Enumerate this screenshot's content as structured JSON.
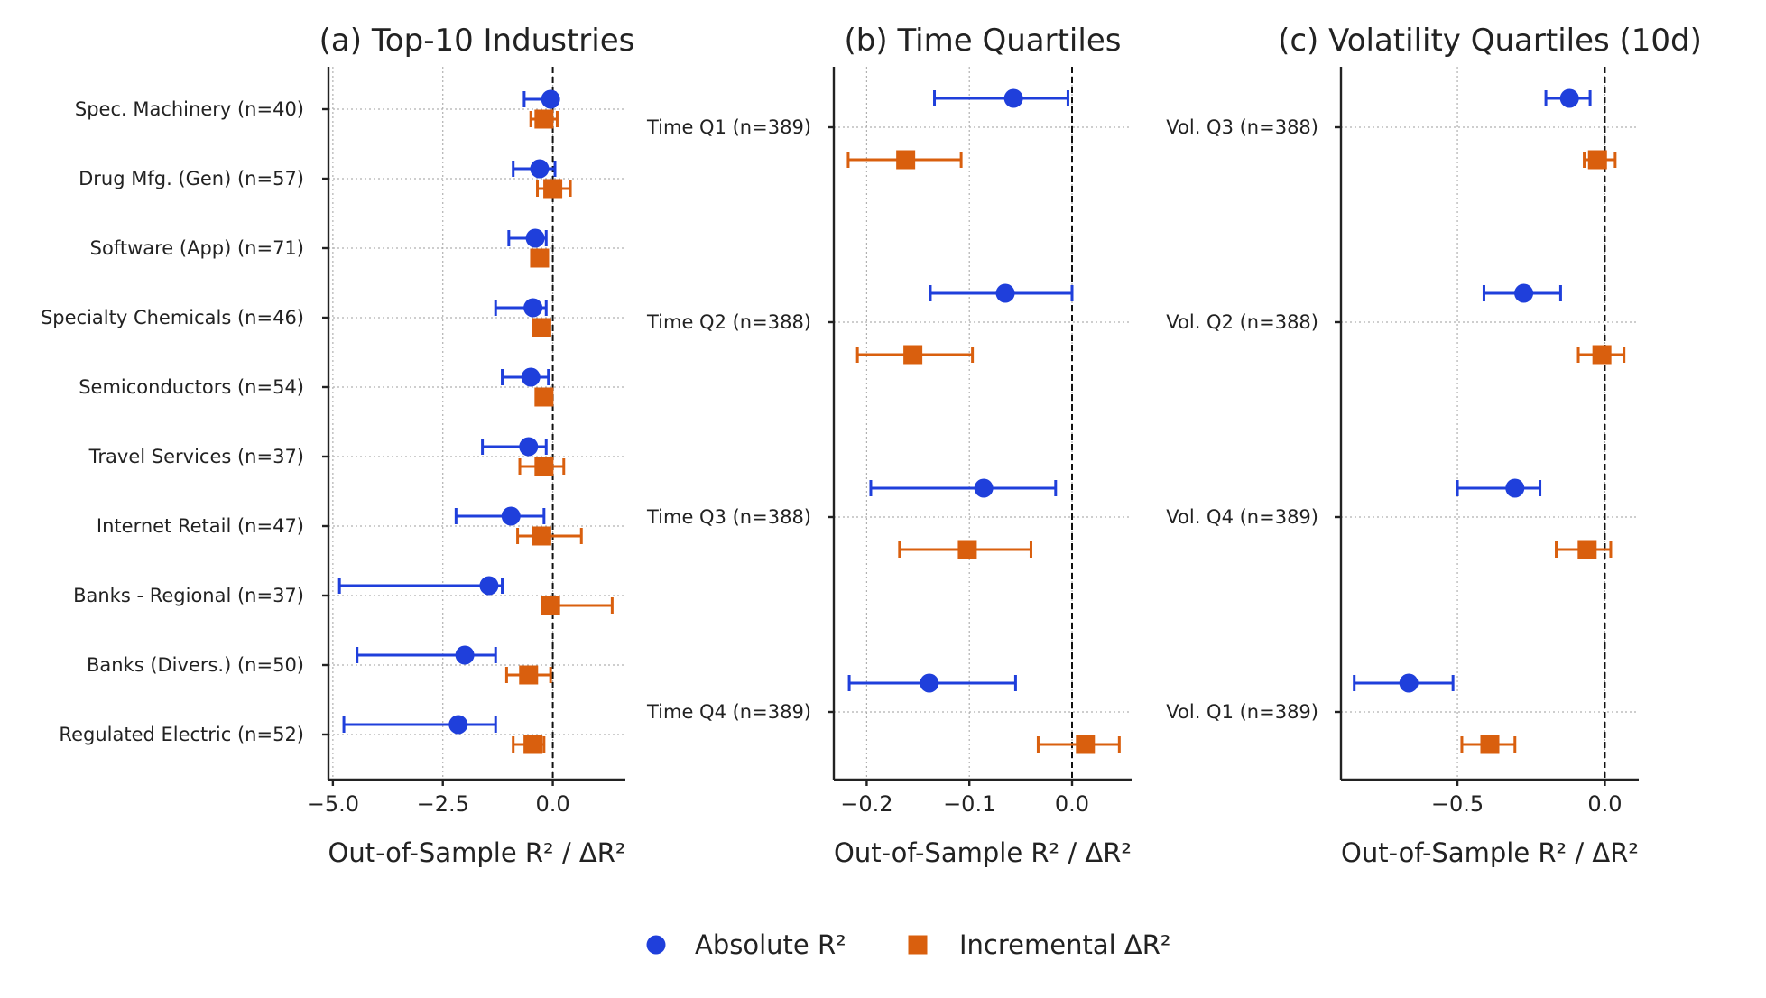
{
  "colors": {
    "absolute": "#1f3fdb",
    "incremental": "#d95f0e",
    "axis": "#222222",
    "grid": "#b0b0b0",
    "zero_line": "#111111"
  },
  "legend": {
    "placement": "bottom-center",
    "absolute_label": "Absolute R²",
    "incremental_label": "Incremental ΔR²"
  },
  "chart_data": [
    {
      "type": "errorbar",
      "title": "(a) Top-10 Industries",
      "xlabel": "Out-of-Sample R² / ΔR²",
      "xlim": [
        -5.1,
        1.65
      ],
      "xticks": [
        -5.0,
        -2.5,
        0.0
      ],
      "xtick_labels": [
        "−5.0",
        "−2.5",
        "0.0"
      ],
      "categories": [
        "Spec. Machinery (n=40)",
        "Drug Mfg. (Gen) (n=57)",
        "Software (App) (n=71)",
        "Specialty Chemicals (n=46)",
        "Semiconductors (n=54)",
        "Travel Services (n=37)",
        "Internet Retail (n=47)",
        "Banks - Regional (n=37)",
        "Banks (Divers.) (n=50)",
        "Regulated Electric (n=52)"
      ],
      "reference_line_x": 0,
      "grid": true,
      "series": [
        {
          "key": "absolute",
          "marker": "circle",
          "values": [
            -0.05,
            -0.3,
            -0.4,
            -0.45,
            -0.5,
            -0.55,
            -0.95,
            -1.45,
            -2.0,
            -2.15
          ],
          "lower": [
            -0.65,
            -0.9,
            -1.0,
            -1.3,
            -1.15,
            -1.6,
            -2.2,
            -4.85,
            -4.45,
            -4.75
          ],
          "upper": [
            0.05,
            0.05,
            -0.15,
            -0.15,
            -0.1,
            -0.15,
            -0.2,
            -1.15,
            -1.3,
            -1.3
          ]
        },
        {
          "key": "incremental",
          "marker": "square",
          "values": [
            -0.2,
            0.0,
            -0.3,
            -0.25,
            -0.2,
            -0.2,
            -0.25,
            -0.05,
            -0.55,
            -0.45
          ],
          "lower": [
            -0.5,
            -0.35,
            -0.3,
            -0.25,
            -0.2,
            -0.75,
            -0.8,
            -0.1,
            -1.05,
            -0.9
          ],
          "upper": [
            0.1,
            0.4,
            -0.3,
            -0.25,
            -0.2,
            0.25,
            0.65,
            1.35,
            -0.05,
            -0.2
          ]
        }
      ]
    },
    {
      "type": "errorbar",
      "title": "(b) Time Quartiles",
      "xlabel": "Out-of-Sample R² / ΔR²",
      "xlim": [
        -0.232,
        0.058
      ],
      "xticks": [
        -0.2,
        -0.1,
        0.0
      ],
      "xtick_labels": [
        "−0.2",
        "−0.1",
        "0.0"
      ],
      "categories": [
        "Time Q1 (n=389)",
        "Time Q2 (n=388)",
        "Time Q3 (n=388)",
        "Time Q4 (n=389)"
      ],
      "reference_line_x": 0,
      "grid": true,
      "series": [
        {
          "key": "absolute",
          "marker": "circle",
          "values": [
            -0.057,
            -0.065,
            -0.086,
            -0.139
          ],
          "lower": [
            -0.134,
            -0.138,
            -0.196,
            -0.217
          ],
          "upper": [
            -0.004,
            0.0,
            -0.016,
            -0.055
          ]
        },
        {
          "key": "incremental",
          "marker": "square",
          "values": [
            -0.162,
            -0.155,
            -0.102,
            0.013
          ],
          "lower": [
            -0.218,
            -0.209,
            -0.168,
            -0.033
          ],
          "upper": [
            -0.108,
            -0.097,
            -0.04,
            0.046
          ]
        }
      ]
    },
    {
      "type": "errorbar",
      "title": "(c) Volatility Quartiles (10d)",
      "xlabel": "Out-of-Sample R² / ΔR²",
      "xlim": [
        -0.895,
        0.115
      ],
      "xticks": [
        -0.5,
        0.0
      ],
      "xtick_labels": [
        "−0.5",
        "0.0"
      ],
      "categories": [
        "Vol. Q3 (n=388)",
        "Vol. Q2 (n=388)",
        "Vol. Q4 (n=389)",
        "Vol. Q1 (n=389)"
      ],
      "reference_line_x": 0,
      "grid": true,
      "series": [
        {
          "key": "absolute",
          "marker": "circle",
          "values": [
            -0.12,
            -0.275,
            -0.305,
            -0.665
          ],
          "lower": [
            -0.2,
            -0.41,
            -0.5,
            -0.85
          ],
          "upper": [
            -0.05,
            -0.15,
            -0.22,
            -0.515
          ]
        },
        {
          "key": "incremental",
          "marker": "square",
          "values": [
            -0.025,
            -0.01,
            -0.06,
            -0.39
          ],
          "lower": [
            -0.07,
            -0.09,
            -0.165,
            -0.485
          ],
          "upper": [
            0.035,
            0.065,
            0.02,
            -0.305
          ]
        }
      ]
    }
  ]
}
